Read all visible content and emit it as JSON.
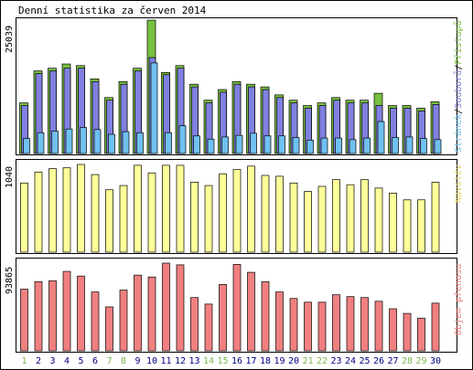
{
  "chart_data": [
    {
      "type": "bar",
      "title": "Denní statistika za červen 2014",
      "ymax_label": "25039",
      "legend": {
        "pristupu": "Přístupů",
        "sep1": "/",
        "souboru": "Souborů",
        "sep2": "/",
        "stranek": "Stránek"
      },
      "colors": {
        "pristupu": "#77c040",
        "souboru": "#8080e0",
        "stranek": "#70c0f0"
      },
      "categories": [
        "1",
        "2",
        "3",
        "4",
        "5",
        "6",
        "7",
        "8",
        "9",
        "10",
        "11",
        "12",
        "13",
        "14",
        "15",
        "16",
        "17",
        "18",
        "19",
        "20",
        "21",
        "22",
        "23",
        "24",
        "25",
        "26",
        "27",
        "28",
        "29",
        "30"
      ],
      "series": [
        {
          "name": "Přístupů",
          "values": [
            9500,
            15500,
            16000,
            16800,
            16500,
            14000,
            10500,
            13500,
            16000,
            25039,
            15200,
            16500,
            13000,
            10000,
            12000,
            13500,
            13000,
            12500,
            11000,
            10000,
            9000,
            9500,
            10500,
            10000,
            10000,
            11300,
            9000,
            9000,
            8500,
            9700
          ]
        },
        {
          "name": "Souborů",
          "values": [
            9000,
            15000,
            15500,
            16000,
            16000,
            13500,
            10000,
            13000,
            15500,
            18000,
            14800,
            16000,
            12500,
            9500,
            11500,
            13000,
            12500,
            12000,
            10500,
            9500,
            8500,
            9000,
            10000,
            9500,
            9500,
            9000,
            8500,
            8500,
            8000,
            9200
          ]
        },
        {
          "name": "Stránek",
          "values": [
            2800,
            3900,
            4200,
            4600,
            4900,
            4500,
            3600,
            4100,
            3900,
            17000,
            3900,
            5200,
            3300,
            2700,
            3100,
            3400,
            3800,
            3300,
            3300,
            3000,
            2500,
            2900,
            2900,
            2600,
            2900,
            6000,
            3000,
            3100,
            2800,
            2600
          ]
        }
      ]
    },
    {
      "type": "bar",
      "ymax_label": "1040",
      "side_label": "Návštěv",
      "colors": {
        "navstev": "#ffff99"
      },
      "categories": [
        "1",
        "2",
        "3",
        "4",
        "5",
        "6",
        "7",
        "8",
        "9",
        "10",
        "11",
        "12",
        "13",
        "14",
        "15",
        "16",
        "17",
        "18",
        "19",
        "20",
        "21",
        "22",
        "23",
        "24",
        "25",
        "26",
        "27",
        "28",
        "29",
        "30"
      ],
      "series": [
        {
          "name": "Návštěv",
          "values": [
            820,
            950,
            990,
            1000,
            1040,
            920,
            740,
            790,
            1030,
            940,
            1030,
            1030,
            830,
            790,
            930,
            980,
            1020,
            910,
            900,
            820,
            720,
            780,
            860,
            800,
            860,
            760,
            700,
            620,
            620,
            830
          ]
        }
      ]
    },
    {
      "type": "bar",
      "ymax_label": "93865",
      "side_label": "Objem přenosu",
      "colors": {
        "objem": "#f08080"
      },
      "categories": [
        "1",
        "2",
        "3",
        "4",
        "5",
        "6",
        "7",
        "8",
        "9",
        "10",
        "11",
        "12",
        "13",
        "14",
        "15",
        "16",
        "17",
        "18",
        "19",
        "20",
        "21",
        "22",
        "23",
        "24",
        "25",
        "26",
        "27",
        "28",
        "29",
        "30"
      ],
      "series": [
        {
          "name": "Objem přenosu",
          "values": [
            66000,
            74000,
            75000,
            85000,
            80000,
            63000,
            47000,
            65000,
            81000,
            79000,
            93865,
            92000,
            57000,
            50000,
            71000,
            92500,
            84000,
            74000,
            63000,
            56000,
            52000,
            52000,
            60000,
            58000,
            57000,
            53000,
            45000,
            40000,
            35000,
            51000
          ]
        }
      ]
    }
  ],
  "day_labels": {
    "values": [
      "1",
      "2",
      "3",
      "4",
      "5",
      "6",
      "7",
      "8",
      "9",
      "10",
      "11",
      "12",
      "13",
      "14",
      "15",
      "16",
      "17",
      "18",
      "19",
      "20",
      "21",
      "22",
      "23",
      "24",
      "25",
      "26",
      "27",
      "28",
      "29",
      "30"
    ],
    "weekend": [
      true,
      false,
      false,
      false,
      false,
      false,
      true,
      true,
      false,
      false,
      false,
      false,
      false,
      true,
      true,
      false,
      false,
      false,
      false,
      false,
      true,
      true,
      false,
      false,
      false,
      false,
      false,
      true,
      true,
      false
    ],
    "weekend_color": "#7cb64e",
    "weekday_color": "#000080"
  }
}
